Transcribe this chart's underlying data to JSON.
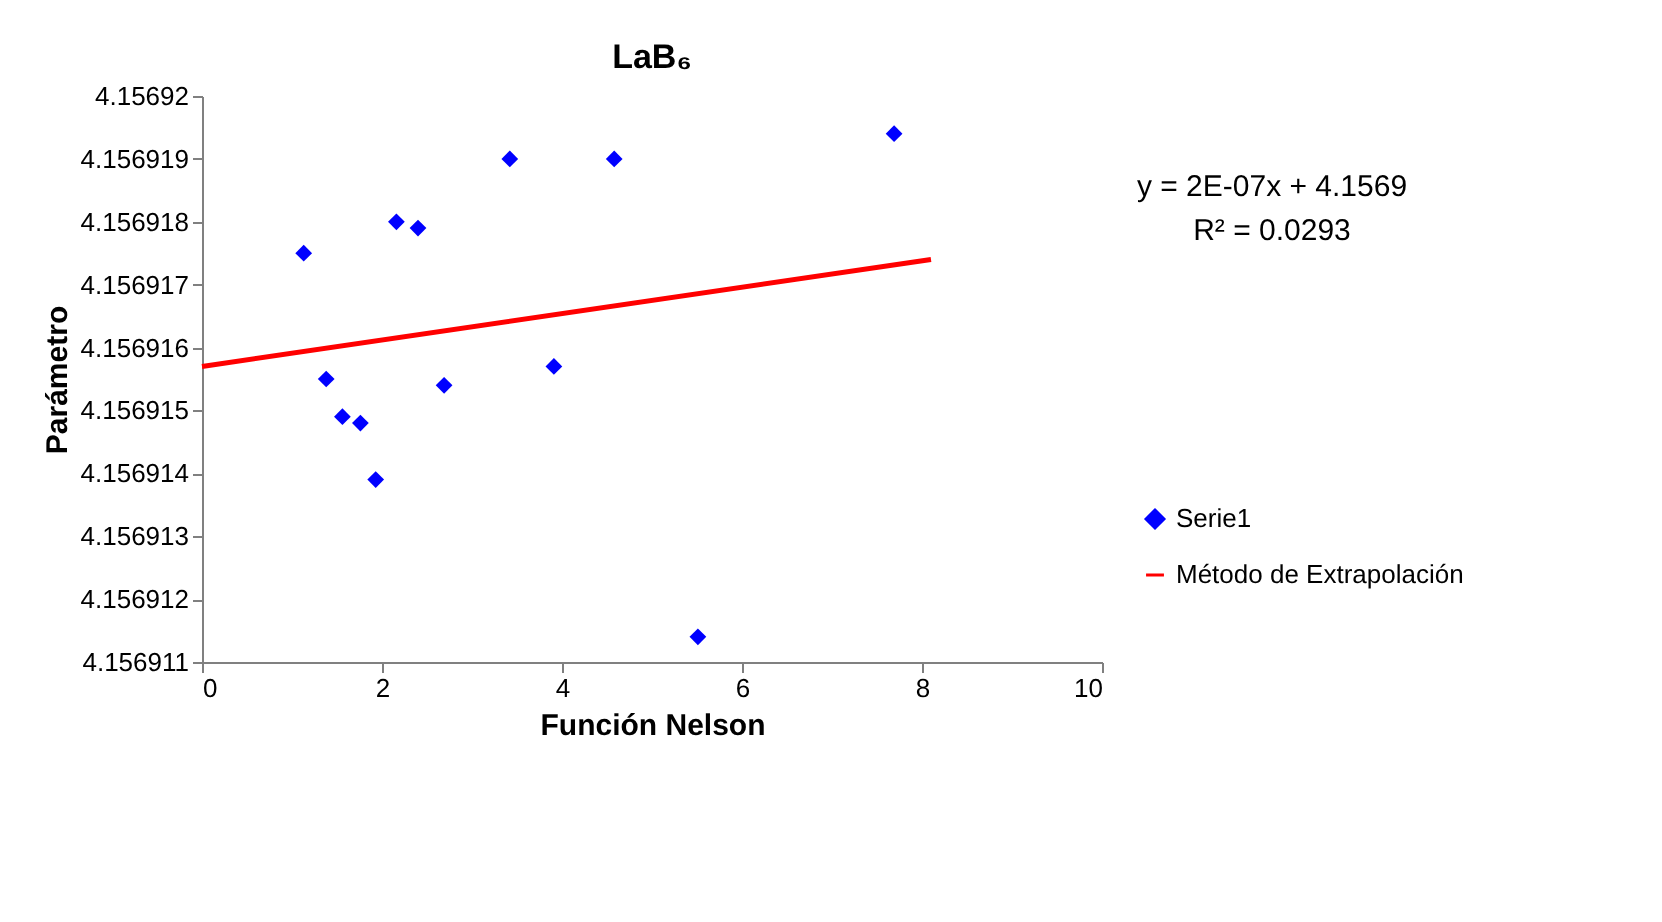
{
  "chart_data": {
    "type": "scatter",
    "title": "LaB₆",
    "xlabel": "Función Nelson",
    "ylabel": "Parámetro",
    "xlim": [
      0,
      10
    ],
    "xticks": [
      0,
      2,
      4,
      6,
      8,
      10
    ],
    "ylim": [
      4.156911,
      4.15692
    ],
    "yticks": [
      4.156911,
      4.156912,
      4.156913,
      4.156914,
      4.156915,
      4.156916,
      4.156917,
      4.156918,
      4.156919,
      4.15692
    ],
    "series": [
      {
        "name": "Serie1",
        "type": "scatter",
        "color": "#0000ff",
        "marker": "diamond",
        "x": [
          1.13,
          1.38,
          1.56,
          1.76,
          1.93,
          2.16,
          2.4,
          2.69,
          3.42,
          3.91,
          4.58,
          5.51,
          7.69
        ],
        "values": [
          4.1569175,
          4.1569155,
          4.1569149,
          4.1569148,
          4.1569139,
          4.156918,
          4.1569179,
          4.1569154,
          4.156919,
          4.1569157,
          4.156919,
          4.1569114,
          4.1569194
        ]
      },
      {
        "name": "Método de Extrapolación",
        "type": "line",
        "color": "#ff0000",
        "line_style": "solid",
        "x": [
          0,
          8.1
        ],
        "values": [
          4.1569157,
          4.1569174
        ]
      }
    ],
    "annotations": [
      "y = 2E-07x + 4.1569",
      "R² = 0.0293"
    ],
    "legend": "right",
    "grid": false
  }
}
